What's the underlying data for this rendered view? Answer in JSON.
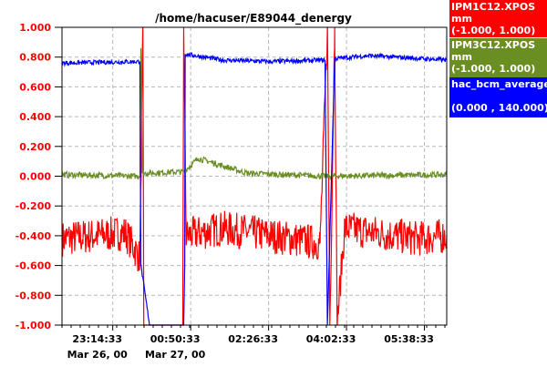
{
  "chart_data": {
    "type": "line",
    "title": "/home/hacuser/E89044_denergy",
    "ylim": [
      -1.0,
      1.0
    ],
    "y_ticks": [
      "1.000",
      "0.800",
      "0.600",
      "0.400",
      "0.200",
      "0.000",
      "-0.200",
      "-0.400",
      "-0.600",
      "-0.800",
      "-1.000"
    ],
    "x_ticks": [
      {
        "time": "23:14:33",
        "date": "Mar 26, 00"
      },
      {
        "time": "00:50:33",
        "date": "Mar 27, 00"
      },
      {
        "time": "02:26:33",
        "date": ""
      },
      {
        "time": "04:02:33",
        "date": ""
      },
      {
        "time": "05:38:33",
        "date": ""
      }
    ],
    "grid": true,
    "legend_placement": "right",
    "series": [
      {
        "name": "IPM1C12.XPOS",
        "unit": "mm",
        "range": "(-1.000,  1.000)",
        "color": "#ff0000",
        "baseline": -0.4,
        "noise": 0.12,
        "points": [
          [
            22.2,
            -0.42
          ],
          [
            23.5,
            -0.38
          ],
          [
            23.8,
            -0.55
          ],
          [
            23.86,
            1.0
          ],
          [
            23.88,
            -1.0
          ],
          [
            24.1,
            -1.0
          ],
          [
            24.68,
            -1.0
          ],
          [
            24.7,
            1.0
          ],
          [
            24.75,
            -0.4
          ],
          [
            25.5,
            -0.35
          ],
          [
            26.5,
            -0.4
          ],
          [
            27.5,
            -0.45
          ],
          [
            27.65,
            1.0
          ],
          [
            27.7,
            -1.0
          ],
          [
            27.8,
            1.0
          ],
          [
            27.85,
            -1.0
          ],
          [
            28.0,
            -0.35
          ],
          [
            29.5,
            -0.42
          ],
          [
            30.1,
            -0.4
          ]
        ]
      },
      {
        "name": "IPM3C12.XPOS",
        "unit": "mm",
        "range": "(-1.000,  1.000)",
        "color": "#6b8e23",
        "baseline": 0.01,
        "noise": 0.02,
        "points": [
          [
            22.2,
            0.01
          ],
          [
            23.8,
            0.0
          ],
          [
            23.82,
            0.86
          ],
          [
            23.85,
            0.02
          ],
          [
            24.7,
            0.03
          ],
          [
            25.0,
            0.12
          ],
          [
            26.0,
            0.02
          ],
          [
            27.6,
            0.0
          ],
          [
            30.1,
            0.01
          ]
        ]
      },
      {
        "name": "hac_bcm_average",
        "unit": "",
        "range": "(0.000 ,  140.000)",
        "color": "#0000ff",
        "baseline": 0.77,
        "noise": 0.015,
        "points": [
          [
            22.2,
            0.76
          ],
          [
            23.8,
            0.77
          ],
          [
            23.82,
            -0.6
          ],
          [
            24.0,
            -1.0
          ],
          [
            24.7,
            -1.0
          ],
          [
            24.72,
            -0.6
          ],
          [
            24.73,
            0.82
          ],
          [
            25.5,
            0.78
          ],
          [
            26.5,
            0.77
          ],
          [
            27.6,
            0.78
          ],
          [
            27.65,
            -1.0
          ],
          [
            27.8,
            0.79
          ],
          [
            28.5,
            0.81
          ],
          [
            30.1,
            0.78
          ]
        ]
      }
    ]
  }
}
